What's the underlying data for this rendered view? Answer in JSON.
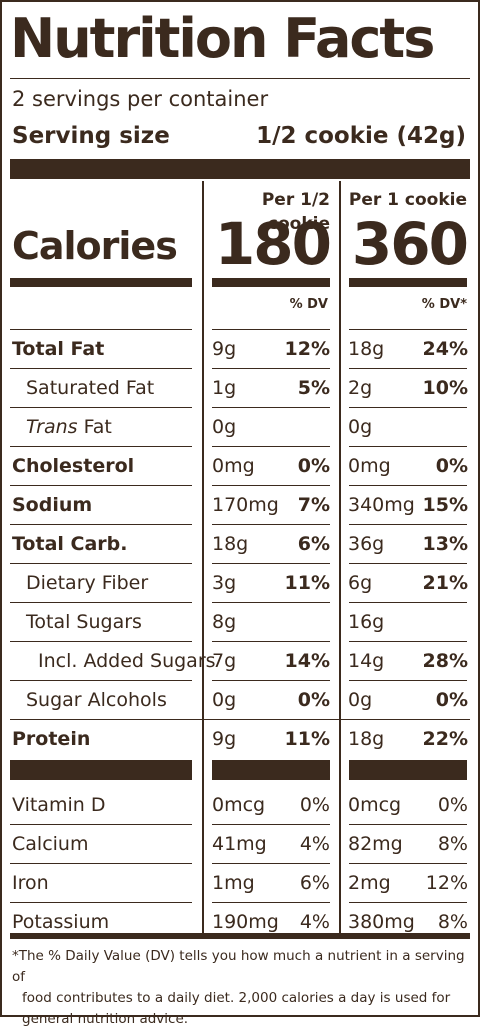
{
  "title": "Nutrition Facts",
  "servings_per_container": "2 servings per container",
  "serving_size_label": "Serving size",
  "serving_size_value": "1/2 cookie (42g)",
  "columns": [
    {
      "header": "Per 1/2 cookie",
      "calories": "180",
      "dv_header": "% DV"
    },
    {
      "header": "Per 1 cookie",
      "calories": "360",
      "dv_header": "% DV*"
    }
  ],
  "calories_label": "Calories",
  "nutrients": [
    {
      "name": "Total Fat",
      "bold": true,
      "indent": 0,
      "c1_amt": "9g",
      "c1_dv": "12%",
      "c2_amt": "18g",
      "c2_dv": "24%"
    },
    {
      "name": "Saturated Fat",
      "bold": false,
      "indent": 1,
      "c1_amt": "1g",
      "c1_dv": "5%",
      "c2_amt": "2g",
      "c2_dv": "10%"
    },
    {
      "name_italic": "Trans",
      "name": " Fat",
      "bold": false,
      "indent": 1,
      "c1_amt": "0g",
      "c1_dv": "",
      "c2_amt": "0g",
      "c2_dv": ""
    },
    {
      "name": "Cholesterol",
      "bold": true,
      "indent": 0,
      "c1_amt": "0mg",
      "c1_dv": "0%",
      "c2_amt": "0mg",
      "c2_dv": "0%"
    },
    {
      "name": "Sodium",
      "bold": true,
      "indent": 0,
      "c1_amt": "170mg",
      "c1_dv": "7%",
      "c2_amt": "340mg",
      "c2_dv": "15%"
    },
    {
      "name": "Total Carb.",
      "bold": true,
      "indent": 0,
      "c1_amt": "18g",
      "c1_dv": "6%",
      "c2_amt": "36g",
      "c2_dv": "13%"
    },
    {
      "name": "Dietary Fiber",
      "bold": false,
      "indent": 1,
      "c1_amt": "3g",
      "c1_dv": "11%",
      "c2_amt": "6g",
      "c2_dv": "21%"
    },
    {
      "name": "Total Sugars",
      "bold": false,
      "indent": 1,
      "c1_amt": "8g",
      "c1_dv": "",
      "c2_amt": "16g",
      "c2_dv": ""
    },
    {
      "name": "Incl. Added Sugars",
      "bold": false,
      "indent": 2,
      "c1_amt": "7g",
      "c1_dv": "14%",
      "c2_amt": "14g",
      "c2_dv": "28%"
    },
    {
      "name": "Sugar Alcohols",
      "bold": false,
      "indent": 1,
      "c1_amt": "0g",
      "c1_dv": "0%",
      "c2_amt": "0g",
      "c2_dv": "0%"
    },
    {
      "name": "Protein",
      "bold": true,
      "indent": 0,
      "c1_amt": "9g",
      "c1_dv": "11%",
      "c2_amt": "18g",
      "c2_dv": "22%"
    }
  ],
  "vitamins": [
    {
      "name": "Vitamin D",
      "c1_amt": "0mcg",
      "c1_dv": "0%",
      "c2_amt": "0mcg",
      "c2_dv": "0%"
    },
    {
      "name": "Calcium",
      "c1_amt": "41mg",
      "c1_dv": "4%",
      "c2_amt": "82mg",
      "c2_dv": "8%"
    },
    {
      "name": "Iron",
      "c1_amt": "1mg",
      "c1_dv": "6%",
      "c2_amt": "2mg",
      "c2_dv": "12%"
    },
    {
      "name": "Potassium",
      "c1_amt": "190mg",
      "c1_dv": "4%",
      "c2_amt": "380mg",
      "c2_dv": "8%"
    }
  ],
  "footnote_line1": "*The % Daily Value (DV) tells you how much a nutrient in a serving of",
  "footnote_line2": "food contributes to a daily diet. 2,000 calories a day is used for",
  "footnote_line3": "general nutrition advice.",
  "colors": {
    "ink": "#3b2a1e",
    "background": "#ffffff"
  }
}
